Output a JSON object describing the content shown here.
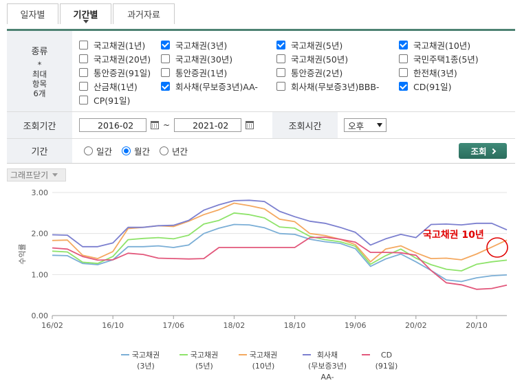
{
  "tabs": [
    {
      "label": "일자별",
      "active": false
    },
    {
      "label": "기간별",
      "active": true
    },
    {
      "label": "과거자료",
      "active": false
    }
  ],
  "types": {
    "label": "종류",
    "note": "*\n최대\n항목\n6개",
    "items": [
      {
        "label": "국고채권(1년)",
        "checked": false
      },
      {
        "label": "국고채권(3년)",
        "checked": true
      },
      {
        "label": "국고채권(5년)",
        "checked": true
      },
      {
        "label": "국고채권(10년)",
        "checked": true
      },
      {
        "label": "국고채권(20년)",
        "checked": false
      },
      {
        "label": "국고채권(30년)",
        "checked": false
      },
      {
        "label": "국고채권(50년)",
        "checked": false
      },
      {
        "label": "국민주택1종(5년)",
        "checked": false
      },
      {
        "label": "통안증권(91일)",
        "checked": false
      },
      {
        "label": "통안증권(1년)",
        "checked": false
      },
      {
        "label": "통안증권(2년)",
        "checked": false
      },
      {
        "label": "한전채(3년)",
        "checked": false
      },
      {
        "label": "산금채(1년)",
        "checked": false
      },
      {
        "label": "회사채(무보증3년)AA-",
        "checked": true
      },
      {
        "label": "회사채(무보증3년)BBB-",
        "checked": false
      },
      {
        "label": "CD(91일)",
        "checked": true
      },
      {
        "label": "CP(91일)",
        "checked": false
      }
    ]
  },
  "period_query": {
    "label": "조회기간",
    "start": "2016-02",
    "separator": "~",
    "end": "2021-02"
  },
  "time_query": {
    "label": "조회시간",
    "value": "오후"
  },
  "period": {
    "label": "기간",
    "options": [
      {
        "label": "일간",
        "selected": false
      },
      {
        "label": "월간",
        "selected": true
      },
      {
        "label": "년간",
        "selected": false
      }
    ]
  },
  "query_button": "조회",
  "graph_toggle": "그래프닫기",
  "annotation": {
    "text": "국고채권 10년",
    "color": "#e00000"
  },
  "chart_data": {
    "type": "line",
    "ylabel": "수익률",
    "ylim": [
      0,
      3
    ],
    "yticks": [
      "0.00",
      "1.00",
      "2.00",
      "3.00"
    ],
    "x": [
      "16/02",
      "16/04",
      "16/06",
      "16/08",
      "16/10",
      "16/12",
      "17/02",
      "17/04",
      "17/06",
      "17/08",
      "17/10",
      "17/12",
      "18/02",
      "18/04",
      "18/06",
      "18/08",
      "18/10",
      "18/12",
      "19/02",
      "19/04",
      "19/06",
      "19/08",
      "19/10",
      "19/12",
      "20/02",
      "20/04",
      "20/06",
      "20/08",
      "20/10",
      "20/12",
      "21/02"
    ],
    "xticks": [
      "16/02",
      "16/10",
      "17/06",
      "18/02",
      "18/10",
      "19/06",
      "20/02",
      "20/10"
    ],
    "grid": true,
    "legend_position": "bottom",
    "series": [
      {
        "name": "국고채권(3년)",
        "legend": [
          "국고채권",
          "(3년)"
        ],
        "color": "#7aaed6",
        "values": [
          1.47,
          1.46,
          1.27,
          1.24,
          1.36,
          1.68,
          1.68,
          1.7,
          1.66,
          1.72,
          2.0,
          2.13,
          2.22,
          2.21,
          2.14,
          2.0,
          1.98,
          1.86,
          1.8,
          1.76,
          1.63,
          1.2,
          1.38,
          1.5,
          1.31,
          1.1,
          0.87,
          0.83,
          0.92,
          0.97,
          0.99
        ]
      },
      {
        "name": "국고채권(5년)",
        "legend": [
          "국고채권",
          "(5년)"
        ],
        "color": "#8ee36a",
        "values": [
          1.57,
          1.55,
          1.3,
          1.27,
          1.44,
          1.85,
          1.88,
          1.9,
          1.87,
          1.96,
          2.23,
          2.32,
          2.5,
          2.46,
          2.38,
          2.16,
          2.13,
          1.93,
          1.85,
          1.8,
          1.69,
          1.25,
          1.46,
          1.62,
          1.4,
          1.24,
          1.13,
          1.09,
          1.25,
          1.31,
          1.35
        ]
      },
      {
        "name": "국고채권(10년)",
        "legend": [
          "국고채권",
          "(10년)"
        ],
        "color": "#f4a85f",
        "values": [
          1.83,
          1.84,
          1.47,
          1.39,
          1.56,
          2.12,
          2.15,
          2.19,
          2.17,
          2.3,
          2.46,
          2.58,
          2.74,
          2.68,
          2.6,
          2.35,
          2.29,
          2.0,
          1.95,
          1.86,
          1.73,
          1.31,
          1.62,
          1.7,
          1.53,
          1.39,
          1.4,
          1.36,
          1.5,
          1.67,
          1.84
        ]
      },
      {
        "name": "회사채(무보증3년)AA-",
        "legend": [
          "회사채",
          "(무보증3년)",
          "AA-"
        ],
        "color": "#7b7fcf",
        "values": [
          1.97,
          1.96,
          1.68,
          1.68,
          1.77,
          2.15,
          2.15,
          2.19,
          2.2,
          2.32,
          2.57,
          2.7,
          2.8,
          2.81,
          2.78,
          2.54,
          2.41,
          2.3,
          2.25,
          2.15,
          2.03,
          1.72,
          1.87,
          1.98,
          1.9,
          2.22,
          2.23,
          2.21,
          2.25,
          2.25,
          2.09
        ]
      },
      {
        "name": "CD(91일)",
        "legend": [
          "CD",
          "(91일)"
        ],
        "color": "#e2577b",
        "values": [
          1.65,
          1.62,
          1.44,
          1.35,
          1.36,
          1.52,
          1.49,
          1.4,
          1.39,
          1.38,
          1.39,
          1.66,
          1.66,
          1.66,
          1.66,
          1.66,
          1.66,
          1.9,
          1.91,
          1.86,
          1.79,
          1.54,
          1.54,
          1.53,
          1.47,
          1.1,
          0.8,
          0.75,
          0.64,
          0.66,
          0.74
        ]
      }
    ]
  }
}
